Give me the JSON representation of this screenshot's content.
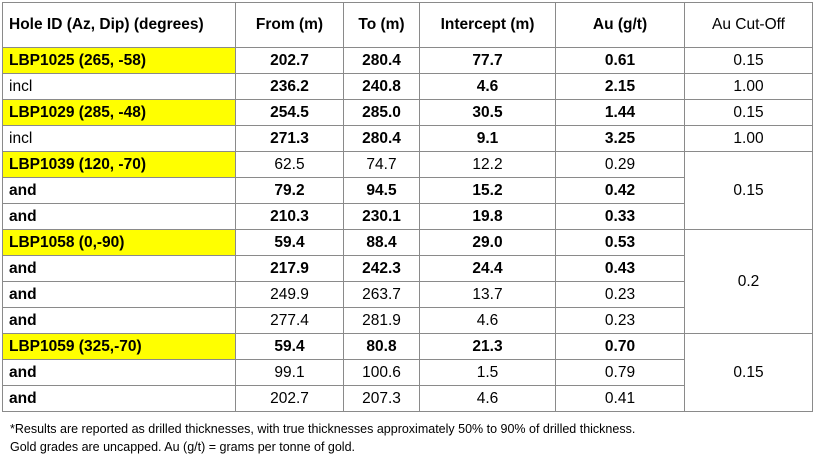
{
  "headers": {
    "hole_id": "Hole ID (Az, Dip) (degrees)",
    "from": "From (m)",
    "to": "To (m)",
    "intercept": "Intercept (m)",
    "au": "Au (g/t)",
    "cutoff": "Au Cut-Off"
  },
  "rows": [
    {
      "id": "LBP1025 (265, -58)",
      "from": "202.7",
      "to": "280.4",
      "intercept": "77.7",
      "au": "0.61",
      "cutoff": "0.15"
    },
    {
      "id": "incl",
      "from": "236.2",
      "to": "240.8",
      "intercept": "4.6",
      "au": "2.15",
      "cutoff": "1.00"
    },
    {
      "id": "LBP1029 (285, -48)",
      "from": "254.5",
      "to": "285.0",
      "intercept": "30.5",
      "au": "1.44",
      "cutoff": "0.15"
    },
    {
      "id": "incl",
      "from": "271.3",
      "to": "280.4",
      "intercept": "9.1",
      "au": "3.25",
      "cutoff": "1.00"
    },
    {
      "id": "LBP1039 (120, -70)",
      "from": "62.5",
      "to": "74.7",
      "intercept": "12.2",
      "au": "0.29"
    },
    {
      "id": "and",
      "from": "79.2",
      "to": "94.5",
      "intercept": "15.2",
      "au": "0.42"
    },
    {
      "id": "and",
      "from": "210.3",
      "to": "230.1",
      "intercept": "19.8",
      "au": "0.33"
    },
    {
      "id": "LBP1058 (0,-90)",
      "from": "59.4",
      "to": "88.4",
      "intercept": "29.0",
      "au": "0.53"
    },
    {
      "id": "and",
      "from": "217.9",
      "to": "242.3",
      "intercept": "24.4",
      "au": "0.43"
    },
    {
      "id": "and",
      "from": "249.9",
      "to": "263.7",
      "intercept": "13.7",
      "au": "0.23"
    },
    {
      "id": "and",
      "from": "277.4",
      "to": "281.9",
      "intercept": "4.6",
      "au": "0.23"
    },
    {
      "id": "LBP1059 (325,-70)",
      "from": "59.4",
      "to": "80.8",
      "intercept": "21.3",
      "au": "0.70"
    },
    {
      "id": "and",
      "from": "99.1",
      "to": "100.6",
      "intercept": "1.5",
      "au": "0.79"
    },
    {
      "id": "and",
      "from": "202.7",
      "to": "207.3",
      "intercept": "4.6",
      "au": "0.41"
    }
  ],
  "cutoff_groups": {
    "lbp1039": "0.15",
    "lbp1058": "0.2",
    "lbp1059": "0.15"
  },
  "footnote": {
    "line1": "*Results are reported as drilled thicknesses, with true thicknesses approximately 50% to 90% of drilled thickness.",
    "line2": "Gold grades are uncapped. Au (g/t) = grams per tonne of gold."
  },
  "colors": {
    "highlight": "#ffff00",
    "border": "#8a8a8a"
  }
}
